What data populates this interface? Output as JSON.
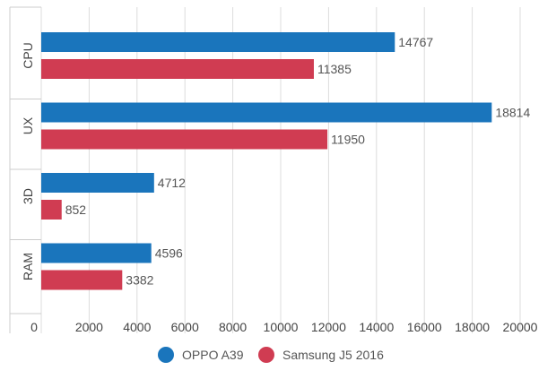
{
  "chart_data": {
    "type": "bar",
    "orientation": "horizontal",
    "categories": [
      "CPU",
      "UX",
      "3D",
      "RAM"
    ],
    "series": [
      {
        "name": "OPPO A39",
        "color": "#1a75bc",
        "values": [
          14767,
          18814,
          4712,
          4596
        ]
      },
      {
        "name": "Samsung J5 2016",
        "color": "#d03c52",
        "values": [
          11385,
          11950,
          852,
          3382
        ]
      }
    ],
    "x_ticks": [
      0,
      2000,
      4000,
      6000,
      8000,
      10000,
      12000,
      14000,
      16000,
      18000,
      20000
    ],
    "xlim": [
      0,
      20000
    ],
    "grid": true,
    "legend_position": "bottom-center",
    "title": "",
    "xlabel": "",
    "ylabel": ""
  }
}
